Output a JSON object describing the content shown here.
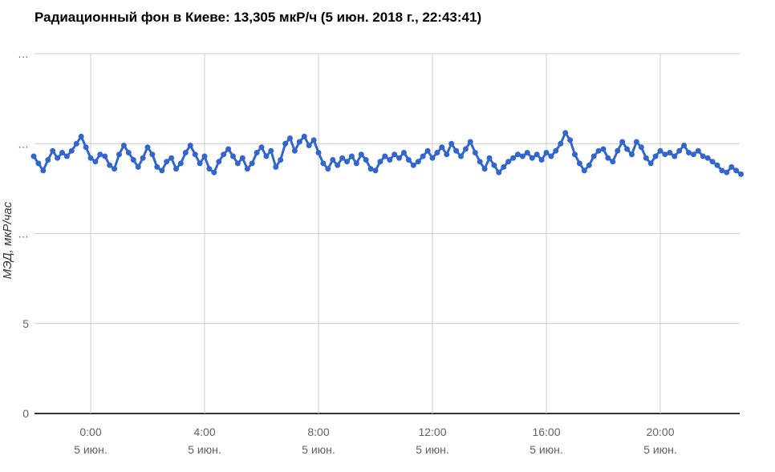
{
  "page": {
    "background_color": "#ffffff"
  },
  "chart": {
    "title": "Радиационный фон в Киеве: 13,305 мкР/ч (5 июн. 2018 г., 22:43:41)"
  },
  "chart_data": {
    "type": "line",
    "title": "Радиационный фон в Киеве: 13,305 мкР/ч (5 июн. 2018 г., 22:43:41)",
    "xlabel": "",
    "ylabel": "МЭД, мкР/час",
    "legend": "none",
    "grid": true,
    "series_color": "#3366cc",
    "gridline_color": "#cccccc",
    "baseline_color": "#333333",
    "tick_label_color": "#616161",
    "axis_title_color": "#333333",
    "ylim": [
      0,
      20
    ],
    "xlim_hours": [
      -2.05,
      22.95
    ],
    "y_ticks": [
      {
        "value": 0,
        "label": "0"
      },
      {
        "value": 5,
        "label": "5"
      },
      {
        "value": 10,
        "label": "…"
      },
      {
        "value": 15,
        "label": "…"
      },
      {
        "value": 20,
        "label": "…"
      }
    ],
    "x_ticks": [
      {
        "hour": 0,
        "time": "0:00",
        "date": "5 июн."
      },
      {
        "hour": 4,
        "time": "4:00",
        "date": "5 июн."
      },
      {
        "hour": 8,
        "time": "8:00",
        "date": "5 июн."
      },
      {
        "hour": 12,
        "time": "12:00",
        "date": "5 июн."
      },
      {
        "hour": 16,
        "time": "16:00",
        "date": "5 июн."
      },
      {
        "hour": 20,
        "time": "20:00",
        "date": "5 июн."
      }
    ],
    "series_name": "МЭД, мкР/час",
    "x_start_hours": -2.0,
    "x_step_hours": 0.166667,
    "values": [
      14.3,
      13.9,
      13.5,
      14.1,
      14.6,
      14.2,
      14.5,
      14.3,
      14.6,
      15.0,
      15.4,
      14.8,
      14.2,
      14.0,
      14.4,
      14.3,
      13.8,
      13.6,
      14.4,
      14.9,
      14.5,
      14.1,
      13.7,
      14.2,
      14.8,
      14.4,
      13.7,
      13.5,
      14.0,
      14.2,
      13.6,
      13.9,
      14.5,
      14.9,
      14.4,
      13.9,
      14.3,
      13.6,
      13.4,
      14.0,
      14.4,
      14.7,
      14.3,
      13.9,
      14.2,
      13.6,
      13.9,
      14.5,
      14.8,
      14.3,
      14.6,
      13.7,
      14.1,
      15.0,
      15.3,
      14.6,
      15.1,
      15.4,
      14.9,
      15.2,
      14.5,
      13.9,
      13.6,
      14.1,
      13.8,
      14.2,
      14.0,
      14.3,
      13.9,
      14.4,
      14.1,
      13.6,
      13.5,
      14.0,
      14.3,
      14.1,
      14.4,
      14.2,
      14.5,
      14.1,
      13.8,
      14.0,
      14.3,
      14.6,
      14.2,
      14.5,
      14.8,
      14.4,
      15.0,
      14.6,
      14.3,
      14.7,
      15.1,
      14.5,
      14.0,
      13.6,
      14.2,
      13.8,
      13.4,
      13.7,
      14.0,
      14.2,
      14.4,
      14.3,
      14.5,
      14.2,
      14.4,
      14.1,
      14.5,
      14.3,
      14.6,
      15.0,
      15.6,
      15.2,
      14.4,
      13.9,
      13.5,
      13.8,
      14.3,
      14.6,
      14.7,
      14.2,
      14.0,
      14.6,
      15.1,
      14.7,
      14.4,
      15.1,
      14.8,
      14.2,
      13.9,
      14.3,
      14.6,
      14.4,
      14.5,
      14.3,
      14.6,
      14.9,
      14.5,
      14.4,
      14.6,
      14.3,
      14.2,
      14.0,
      13.8,
      13.5,
      13.4,
      13.7,
      13.5,
      13.3
    ]
  }
}
